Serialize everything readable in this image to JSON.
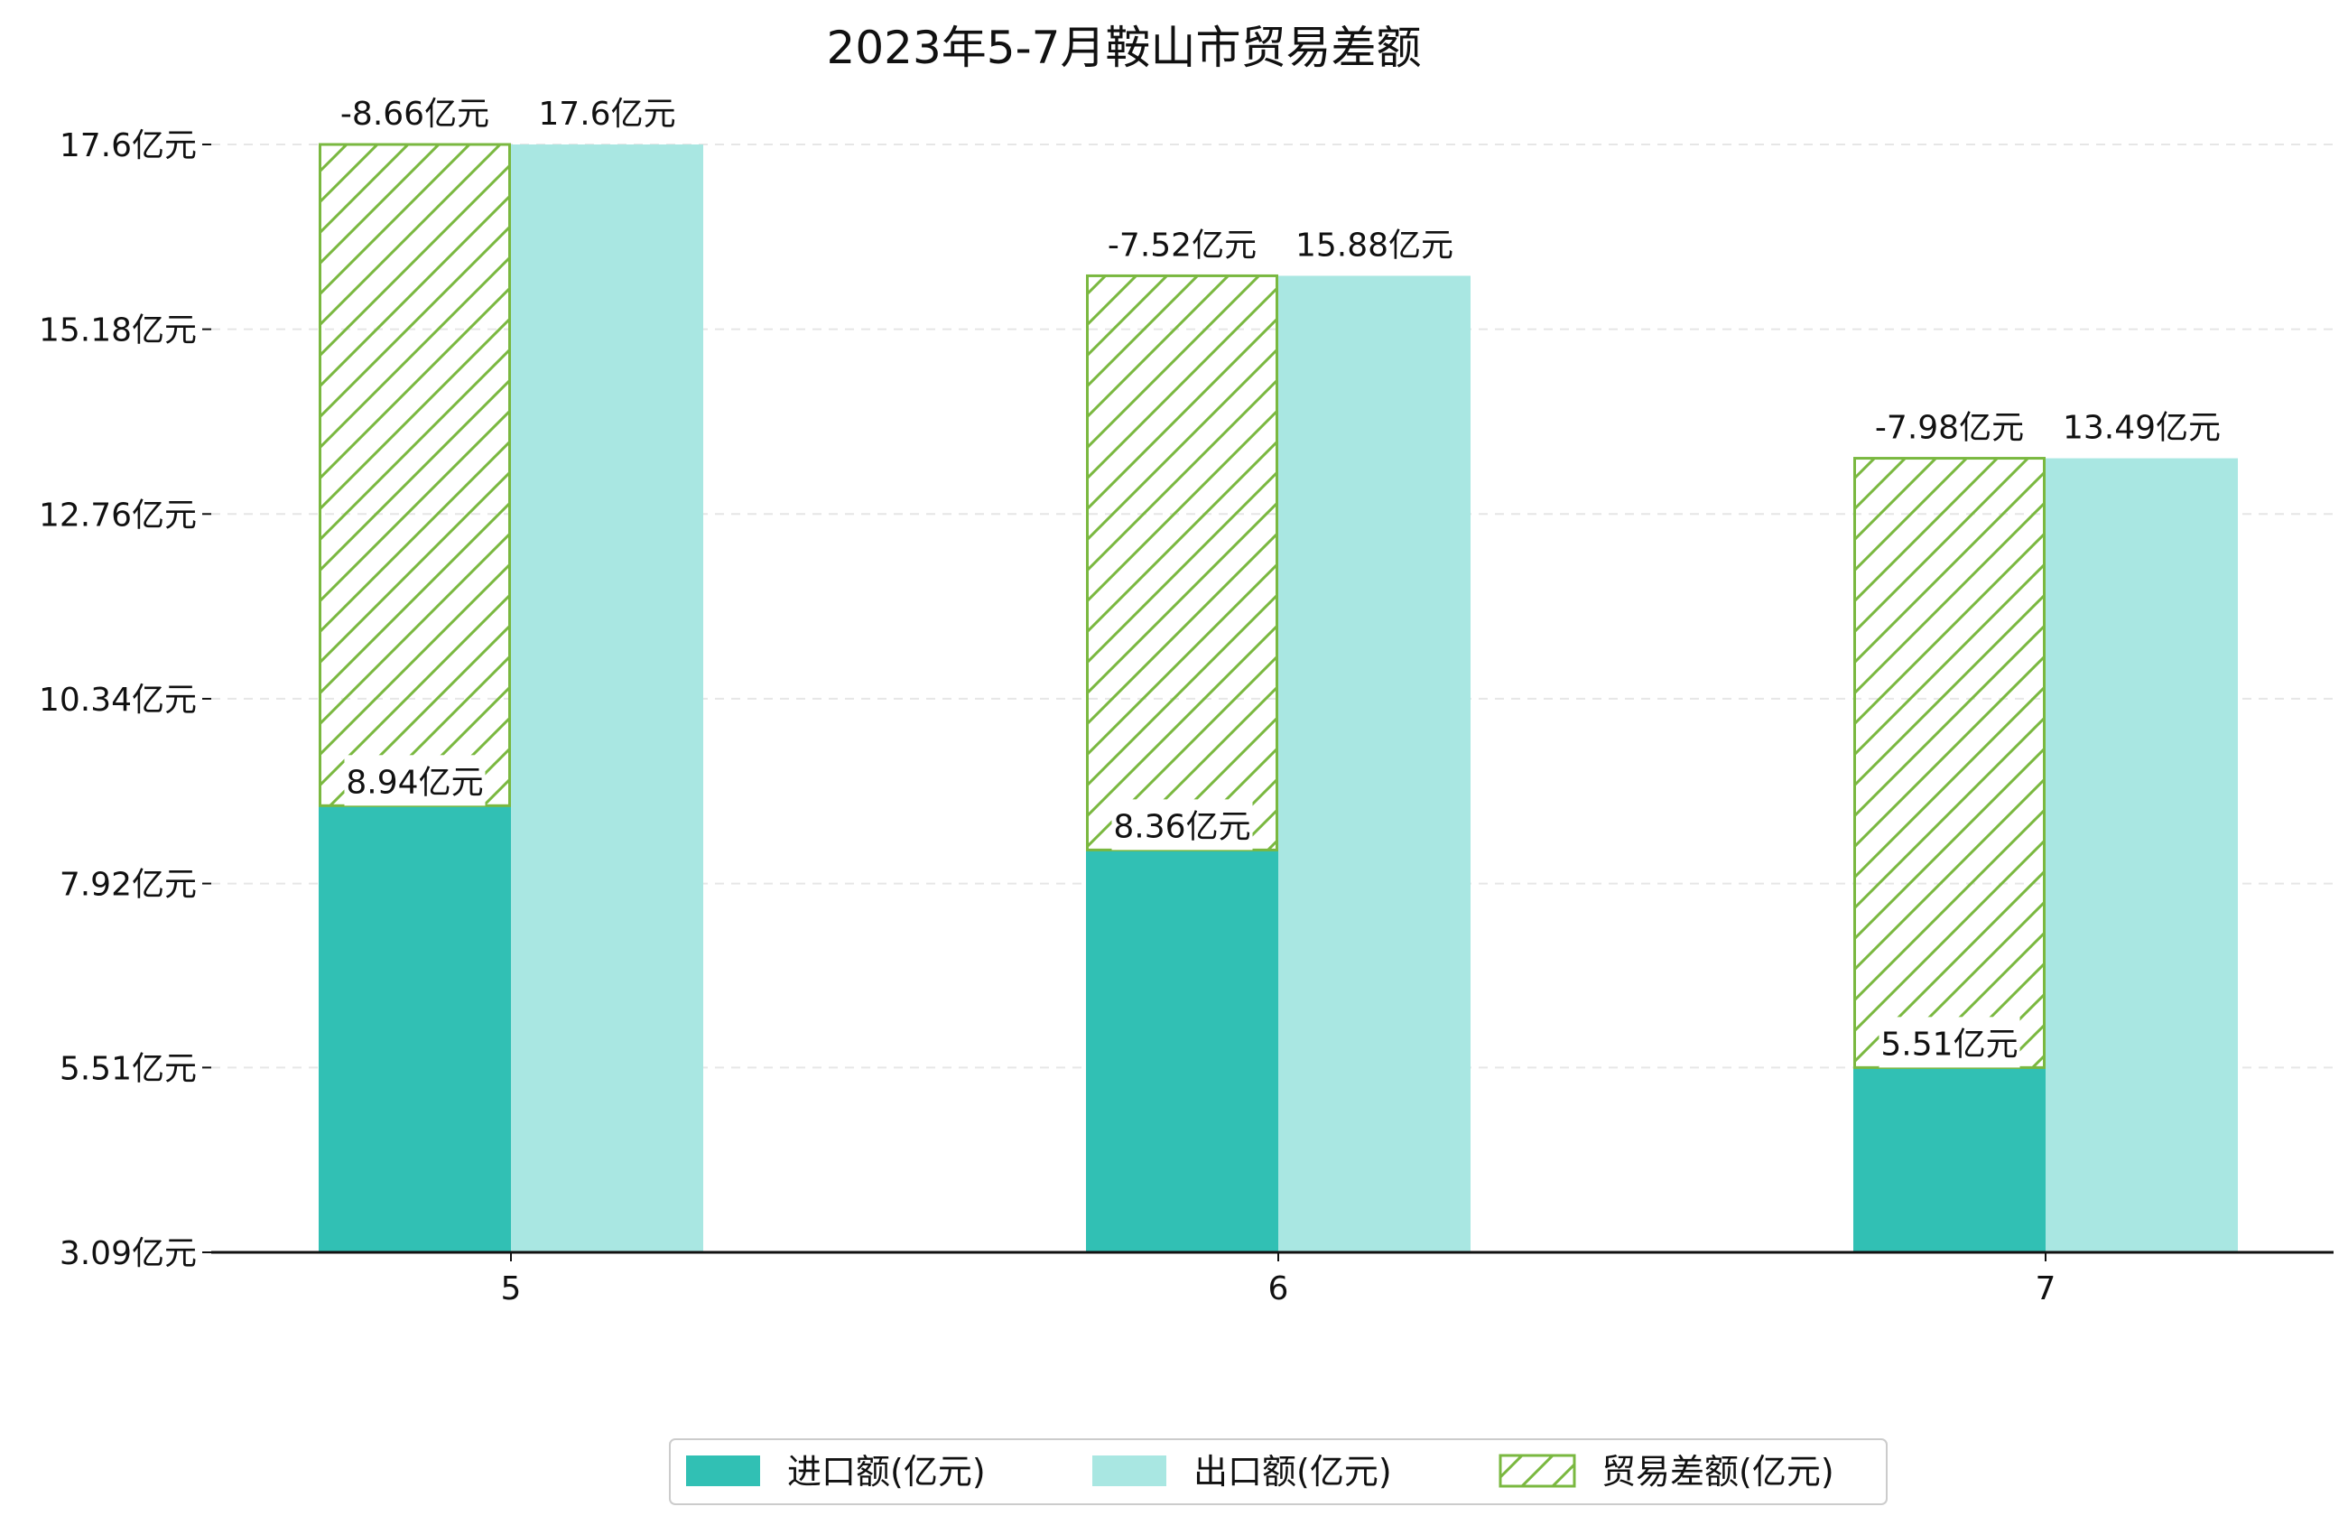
{
  "chart_data": {
    "type": "bar",
    "title": "2023年5-7月鞍山市贸易差额",
    "categories": [
      "5",
      "6",
      "7"
    ],
    "ylim": [
      3.09,
      17.6
    ],
    "yticks": [
      "3.09亿元",
      "5.51亿元",
      "7.92亿元",
      "10.34亿元",
      "12.76亿元",
      "15.18亿元",
      "17.6亿元"
    ],
    "ytick_values": [
      3.09,
      5.51,
      7.92,
      10.34,
      12.76,
      15.18,
      17.6
    ],
    "series": [
      {
        "name": "进口额(亿元)",
        "values": [
          8.94,
          8.36,
          5.51
        ],
        "labels": [
          "8.94亿元",
          "8.36亿元",
          "5.51亿元"
        ],
        "color": "#31c0b4"
      },
      {
        "name": "出口额(亿元)",
        "values": [
          17.6,
          15.88,
          13.49
        ],
        "labels": [
          "17.6亿元",
          "15.88亿元",
          "13.49亿元"
        ],
        "color": "#a9e7e2"
      },
      {
        "name": "贸易差额(亿元)",
        "values": [
          -8.66,
          -7.52,
          -7.98
        ],
        "labels": [
          "-8.66亿元",
          "-7.52亿元",
          "-7.98亿元"
        ],
        "color": "#7ab840",
        "pattern": "hatch"
      }
    ],
    "grid": "y-dashed",
    "legend": "bottom-center"
  }
}
